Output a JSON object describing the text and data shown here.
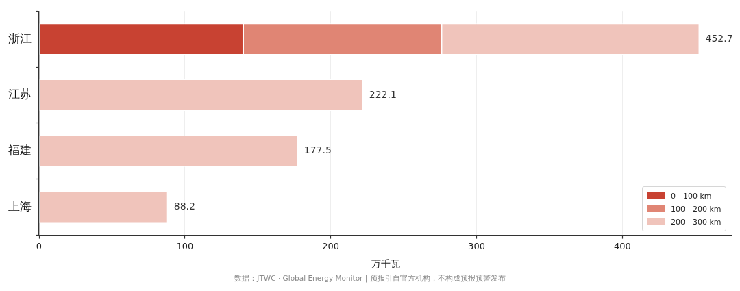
{
  "chart_data": {
    "type": "bar",
    "orientation": "horizontal",
    "stacked": true,
    "categories": [
      "浙江",
      "江苏",
      "福建",
      "上海"
    ],
    "series": [
      {
        "name": "0—100 km",
        "color": "#c84232",
        "values": [
          140,
          0,
          0,
          0
        ]
      },
      {
        "name": "100—200 km",
        "color": "#e08574",
        "values": [
          136,
          0,
          0,
          0
        ]
      },
      {
        "name": "200—300 km",
        "color": "#f0c4bb",
        "values": [
          176.7,
          222.1,
          177.5,
          88.2
        ]
      }
    ],
    "xlabel": "万千瓦",
    "xlim": [
      0,
      475
    ],
    "xticks": [
      0,
      100,
      200,
      300,
      400
    ],
    "grid": "x",
    "legend": "bottom right",
    "totals": [
      "452.7",
      "222.1",
      "177.5",
      "88.2"
    ],
    "annotations": [
      "数据：JTWC · Global Energy Monitor | 预报引自官方机构，不构成预报预警发布"
    ]
  }
}
